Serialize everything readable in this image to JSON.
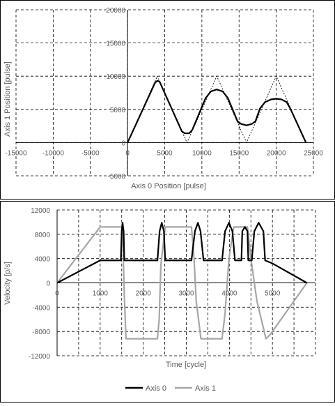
{
  "chart_data": [
    {
      "type": "line",
      "title": "",
      "xlabel": "Axis 0 Position [pulse]",
      "ylabel": "Axis 1 Position [pulse]",
      "xlim": [
        -15000,
        25000
      ],
      "ylim": [
        -5000,
        20000
      ],
      "x_ticks": [
        -15000,
        -10000,
        -5000,
        0,
        5000,
        10000,
        15000,
        20000,
        25000
      ],
      "y_ticks": [
        -5000,
        0,
        5000,
        10000,
        15000,
        20000
      ],
      "x_tick_labels": [
        "-15000",
        "-10000",
        "-5000",
        "0",
        "5000",
        "10000",
        "15000",
        "20000",
        "25000"
      ],
      "y_tick_labels": [
        "-5000",
        "0",
        "5000",
        "10000",
        "15000",
        "20000"
      ],
      "grid": true,
      "series": [
        {
          "style": "solid",
          "color": "#000000",
          "points": [
            [
              0,
              0
            ],
            [
              3700,
              9000
            ],
            [
              4000,
              9300
            ],
            [
              4300,
              9200
            ],
            [
              4700,
              8200
            ],
            [
              7300,
              1700
            ],
            [
              7700,
              1400
            ],
            [
              8300,
              1400
            ],
            [
              8700,
              1900
            ],
            [
              10500,
              6700
            ],
            [
              11200,
              7700
            ],
            [
              12000,
              8000
            ],
            [
              12800,
              7700
            ],
            [
              13500,
              6700
            ],
            [
              14800,
              3200
            ],
            [
              15300,
              2800
            ],
            [
              16000,
              2600
            ],
            [
              16700,
              2800
            ],
            [
              17200,
              3200
            ],
            [
              17800,
              5100
            ],
            [
              18500,
              6100
            ],
            [
              19300,
              6500
            ],
            [
              20000,
              6600
            ],
            [
              20700,
              6500
            ],
            [
              21400,
              6100
            ],
            [
              21900,
              5100
            ],
            [
              24000,
              0
            ]
          ]
        },
        {
          "style": "dotted",
          "color": "#000000",
          "points": [
            [
              0,
              0
            ],
            [
              4000,
              10000
            ],
            [
              8000,
              0
            ],
            [
              12000,
              10000
            ],
            [
              16000,
              0
            ],
            [
              20000,
              10000
            ],
            [
              24000,
              0
            ]
          ]
        }
      ]
    },
    {
      "type": "line",
      "title": "",
      "xlabel": "Time [cycle]",
      "ylabel": "Velocity [p/s]",
      "xlim": [
        0,
        6000
      ],
      "ylim": [
        -12000,
        12000
      ],
      "x_ticks": [
        0,
        1000,
        2000,
        3000,
        4000,
        5000
      ],
      "y_ticks": [
        -12000,
        -8000,
        -4000,
        0,
        4000,
        8000,
        12000
      ],
      "x_tick_labels": [
        "0",
        "1000",
        "2000",
        "3000",
        "4000",
        "5000"
      ],
      "y_tick_labels": [
        "-12000",
        "-8000",
        "-4000",
        "0",
        "4000",
        "8000",
        "12000"
      ],
      "grid": true,
      "legend": "bottom",
      "series": [
        {
          "name": "Axis 0",
          "color": "#000000",
          "points": [
            [
              0,
              0
            ],
            [
              1000,
              3700
            ],
            [
              1480,
              3700
            ],
            [
              1500,
              8500
            ],
            [
              1520,
              9900
            ],
            [
              1545,
              8500
            ],
            [
              1560,
              3700
            ],
            [
              2330,
              3700
            ],
            [
              2380,
              8500
            ],
            [
              2430,
              9900
            ],
            [
              2480,
              8500
            ],
            [
              2510,
              3700
            ],
            [
              3120,
              3700
            ],
            [
              3200,
              8500
            ],
            [
              3270,
              9900
            ],
            [
              3330,
              8500
            ],
            [
              3400,
              3700
            ],
            [
              3830,
              3700
            ],
            [
              3900,
              8500
            ],
            [
              3990,
              9900
            ],
            [
              4070,
              8500
            ],
            [
              4130,
              3700
            ],
            [
              4280,
              3700
            ],
            [
              4300,
              8500
            ],
            [
              4360,
              9200
            ],
            [
              4420,
              8500
            ],
            [
              4440,
              3700
            ],
            [
              4520,
              3700
            ],
            [
              4580,
              8500
            ],
            [
              4680,
              9900
            ],
            [
              4790,
              8500
            ],
            [
              4830,
              3700
            ],
            [
              5000,
              3200
            ],
            [
              5800,
              0
            ]
          ]
        },
        {
          "name": "Axis 1",
          "color": "#a6a6a6",
          "points": [
            [
              0,
              0
            ],
            [
              1000,
              9200
            ],
            [
              1500,
              9200
            ],
            [
              1530,
              6000
            ],
            [
              1560,
              -2000
            ],
            [
              1600,
              -9200
            ],
            [
              2330,
              -9200
            ],
            [
              2370,
              -6000
            ],
            [
              2410,
              3000
            ],
            [
              2510,
              9200
            ],
            [
              3120,
              9200
            ],
            [
              3180,
              4000
            ],
            [
              3230,
              -3000
            ],
            [
              3340,
              -9200
            ],
            [
              3830,
              -9200
            ],
            [
              3900,
              -5000
            ],
            [
              3990,
              4000
            ],
            [
              4100,
              9200
            ],
            [
              4280,
              9200
            ],
            [
              4300,
              9200
            ],
            [
              4420,
              9200
            ],
            [
              4500,
              4000
            ],
            [
              4640,
              -3000
            ],
            [
              4850,
              -9200
            ],
            [
              4950,
              -8500
            ],
            [
              5800,
              0
            ]
          ]
        }
      ]
    }
  ]
}
